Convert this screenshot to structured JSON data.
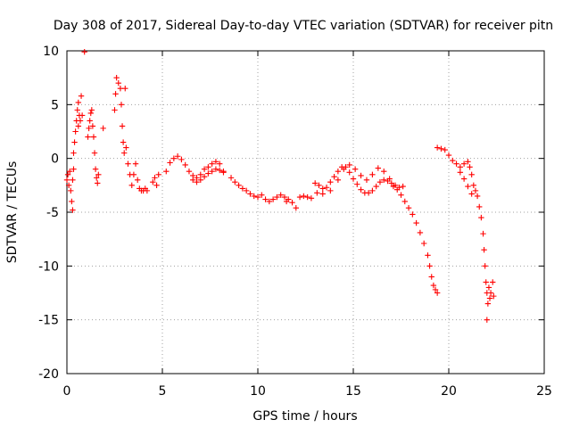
{
  "chart_data": {
    "type": "scatter",
    "title": "Day 308 of 2017, Sidereal Day-to-day VTEC variation (SDTVAR) for receiver pitn",
    "xlabel": "GPS time / hours",
    "ylabel": "SDTVAR / TECUs",
    "xlim": [
      0,
      25
    ],
    "ylim": [
      -20,
      10
    ],
    "x_ticks": [
      "0",
      "5",
      "10",
      "15",
      "20",
      "25"
    ],
    "y_ticks": [
      "10",
      "5",
      "0",
      "-5",
      "-10",
      "-15",
      "-20"
    ],
    "grid": true,
    "marker": "plus",
    "color": "#ff0000",
    "series": [
      {
        "name": "SDTVAR",
        "points": [
          [
            0.0,
            -2.0
          ],
          [
            0.05,
            -1.5
          ],
          [
            0.1,
            -2.5
          ],
          [
            0.15,
            -1.2
          ],
          [
            0.2,
            -3.0
          ],
          [
            0.25,
            -4.0
          ],
          [
            0.3,
            -4.8
          ],
          [
            0.3,
            -2.0
          ],
          [
            0.35,
            -1.0
          ],
          [
            0.35,
            0.5
          ],
          [
            0.4,
            1.5
          ],
          [
            0.45,
            2.5
          ],
          [
            0.5,
            3.5
          ],
          [
            0.55,
            4.5
          ],
          [
            0.6,
            5.2
          ],
          [
            0.6,
            3.0
          ],
          [
            0.65,
            4.0
          ],
          [
            0.7,
            3.5
          ],
          [
            0.75,
            5.8
          ],
          [
            0.8,
            4.0
          ],
          [
            0.92,
            9.9
          ],
          [
            1.1,
            2.0
          ],
          [
            1.15,
            2.8
          ],
          [
            1.2,
            3.5
          ],
          [
            1.25,
            4.2
          ],
          [
            1.3,
            4.5
          ],
          [
            1.35,
            3.0
          ],
          [
            1.4,
            2.0
          ],
          [
            1.45,
            0.5
          ],
          [
            1.5,
            -1.0
          ],
          [
            1.55,
            -1.8
          ],
          [
            1.6,
            -2.3
          ],
          [
            1.65,
            -1.5
          ],
          [
            1.9,
            2.8
          ],
          [
            2.5,
            4.5
          ],
          [
            2.55,
            6.0
          ],
          [
            2.6,
            7.5
          ],
          [
            2.7,
            7.0
          ],
          [
            2.8,
            6.5
          ],
          [
            2.85,
            5.0
          ],
          [
            2.9,
            3.0
          ],
          [
            2.95,
            1.5
          ],
          [
            3.0,
            0.5
          ],
          [
            3.05,
            6.5
          ],
          [
            3.1,
            1.0
          ],
          [
            3.2,
            -0.5
          ],
          [
            3.3,
            -1.5
          ],
          [
            3.4,
            -2.5
          ],
          [
            3.5,
            -1.5
          ],
          [
            3.6,
            -0.5
          ],
          [
            3.7,
            -2.0
          ],
          [
            3.8,
            -2.8
          ],
          [
            3.9,
            -3.0
          ],
          [
            4.0,
            -3.0
          ],
          [
            4.1,
            -2.8
          ],
          [
            4.2,
            -3.0
          ],
          [
            4.5,
            -2.2
          ],
          [
            4.6,
            -1.8
          ],
          [
            4.7,
            -2.5
          ],
          [
            4.8,
            -1.5
          ],
          [
            5.2,
            -1.2
          ],
          [
            5.4,
            -0.4
          ],
          [
            5.6,
            0.0
          ],
          [
            5.8,
            0.2
          ],
          [
            6.0,
            -0.1
          ],
          [
            6.2,
            -0.6
          ],
          [
            6.4,
            -1.2
          ],
          [
            6.6,
            -1.6
          ],
          [
            6.8,
            -1.8
          ],
          [
            7.0,
            -1.5
          ],
          [
            7.2,
            -1.0
          ],
          [
            7.4,
            -0.8
          ],
          [
            7.6,
            -0.5
          ],
          [
            7.8,
            -0.3
          ],
          [
            8.0,
            -0.5
          ],
          [
            8.2,
            -1.2
          ],
          [
            6.6,
            -2.0
          ],
          [
            6.8,
            -2.2
          ],
          [
            7.0,
            -2.0
          ],
          [
            7.2,
            -1.7
          ],
          [
            7.4,
            -1.4
          ],
          [
            7.6,
            -1.2
          ],
          [
            7.8,
            -1.0
          ],
          [
            8.0,
            -1.1
          ],
          [
            8.2,
            -1.3
          ],
          [
            8.6,
            -1.8
          ],
          [
            8.8,
            -2.2
          ],
          [
            9.0,
            -2.5
          ],
          [
            9.2,
            -2.8
          ],
          [
            9.4,
            -3.0
          ],
          [
            9.6,
            -3.3
          ],
          [
            9.8,
            -3.5
          ],
          [
            10.0,
            -3.6
          ],
          [
            10.2,
            -3.4
          ],
          [
            10.4,
            -3.8
          ],
          [
            10.6,
            -4.0
          ],
          [
            10.8,
            -3.8
          ],
          [
            11.0,
            -3.6
          ],
          [
            11.2,
            -3.4
          ],
          [
            11.4,
            -3.6
          ],
          [
            11.6,
            -3.8
          ],
          [
            11.8,
            -4.1
          ],
          [
            12.0,
            -4.6
          ],
          [
            11.5,
            -4.0
          ],
          [
            12.2,
            -3.6
          ],
          [
            12.4,
            -3.5
          ],
          [
            12.6,
            -3.6
          ],
          [
            12.8,
            -3.7
          ],
          [
            13.0,
            -2.3
          ],
          [
            13.2,
            -2.5
          ],
          [
            13.4,
            -2.8
          ],
          [
            13.6,
            -2.7
          ],
          [
            13.8,
            -2.2
          ],
          [
            14.0,
            -1.7
          ],
          [
            14.2,
            -1.2
          ],
          [
            14.4,
            -0.8
          ],
          [
            14.6,
            -0.8
          ],
          [
            14.8,
            -1.3
          ],
          [
            15.0,
            -1.9
          ],
          [
            15.2,
            -2.4
          ],
          [
            15.4,
            -2.9
          ],
          [
            15.6,
            -3.2
          ],
          [
            15.8,
            -3.2
          ],
          [
            16.0,
            -3.0
          ],
          [
            16.2,
            -2.6
          ],
          [
            16.4,
            -2.2
          ],
          [
            16.6,
            -2.0
          ],
          [
            16.8,
            -2.1
          ],
          [
            17.0,
            -2.3
          ],
          [
            17.2,
            -2.5
          ],
          [
            17.4,
            -2.7
          ],
          [
            17.6,
            -2.6
          ],
          [
            13.1,
            -3.2
          ],
          [
            13.4,
            -3.3
          ],
          [
            13.8,
            -3.0
          ],
          [
            14.2,
            -2.0
          ],
          [
            14.5,
            -1.0
          ],
          [
            14.8,
            -0.6
          ],
          [
            15.1,
            -1.0
          ],
          [
            15.4,
            -1.6
          ],
          [
            15.7,
            -2.0
          ],
          [
            16.0,
            -1.5
          ],
          [
            16.3,
            -0.9
          ],
          [
            16.6,
            -1.2
          ],
          [
            16.9,
            -1.9
          ],
          [
            17.1,
            -2.6
          ],
          [
            17.3,
            -2.9
          ],
          [
            17.5,
            -3.4
          ],
          [
            17.7,
            -4.0
          ],
          [
            17.9,
            -4.6
          ],
          [
            18.1,
            -5.2
          ],
          [
            18.3,
            -6.0
          ],
          [
            18.5,
            -6.9
          ],
          [
            18.7,
            -7.9
          ],
          [
            18.9,
            -9.0
          ],
          [
            19.0,
            -10.0
          ],
          [
            19.1,
            -11.0
          ],
          [
            19.2,
            -11.8
          ],
          [
            19.3,
            -12.2
          ],
          [
            19.4,
            -12.5
          ],
          [
            19.4,
            1.0
          ],
          [
            19.6,
            0.9
          ],
          [
            19.8,
            0.8
          ],
          [
            20.0,
            0.3
          ],
          [
            20.2,
            -0.2
          ],
          [
            20.4,
            -0.5
          ],
          [
            20.6,
            -0.8
          ],
          [
            20.8,
            -0.5
          ],
          [
            21.0,
            -0.3
          ],
          [
            21.1,
            -0.8
          ],
          [
            21.2,
            -1.5
          ],
          [
            21.3,
            -2.5
          ],
          [
            21.4,
            -3.0
          ],
          [
            21.5,
            -3.5
          ],
          [
            20.6,
            -1.3
          ],
          [
            20.8,
            -1.9
          ],
          [
            21.0,
            -2.6
          ],
          [
            21.2,
            -3.3
          ],
          [
            21.6,
            -4.5
          ],
          [
            21.7,
            -5.5
          ],
          [
            21.8,
            -7.0
          ],
          [
            21.85,
            -8.5
          ],
          [
            21.9,
            -10.0
          ],
          [
            21.95,
            -11.5
          ],
          [
            22.0,
            -12.5
          ],
          [
            22.0,
            -15.0
          ],
          [
            22.05,
            -13.5
          ],
          [
            22.1,
            -12.0
          ],
          [
            22.15,
            -13.0
          ],
          [
            22.2,
            -12.5
          ],
          [
            22.3,
            -11.5
          ],
          [
            22.35,
            -12.8
          ]
        ]
      }
    ]
  }
}
